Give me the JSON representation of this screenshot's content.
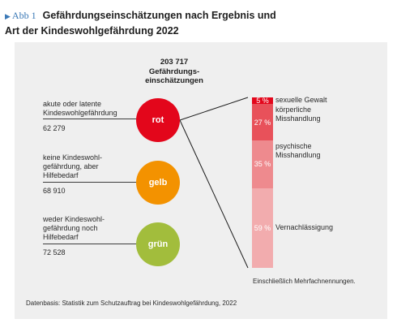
{
  "header": {
    "tag": "Abb 1",
    "title_line1": "Gefährdungseinschätzungen nach Ergebnis und",
    "title_line2": "Art der Kindeswohlgefährdung 2022"
  },
  "total": {
    "value": "203 717",
    "label_line1": "Gefährdungs-",
    "label_line2": "einschätzungen"
  },
  "groups": [
    {
      "label_lines": [
        "akute oder latente",
        "Kindeswohlgefährdung"
      ],
      "count": "62 279",
      "circle_label": "rot",
      "color": "#e3061b"
    },
    {
      "label_lines": [
        "keine Kindeswohl-",
        "gefährdung, aber",
        "Hilfebedarf"
      ],
      "count": "68 910",
      "circle_label": "gelb",
      "color": "#f39200"
    },
    {
      "label_lines": [
        "weder Kindeswohl-",
        "gefährdung noch",
        "Hilfebedarf"
      ],
      "count": "72 528",
      "circle_label": "grün",
      "color": "#a2bd3c"
    }
  ],
  "chart_data": {
    "type": "stacked_bar",
    "categories": [
      "sexuelle Gewalt",
      "körperliche Misshandlung",
      "psychische Misshandlung",
      "Vernachlässigung"
    ],
    "values": [
      5,
      27,
      35,
      59
    ],
    "value_labels": [
      "5 %",
      "27 %",
      "35 %",
      "59 %"
    ],
    "category_label_lines": [
      [
        "sexuelle Gewalt"
      ],
      [
        "körperliche",
        "Misshandlung"
      ],
      [
        "psychische",
        "Misshandlung"
      ],
      [
        "Vernachlässigung"
      ]
    ],
    "colors": [
      "#e3061b",
      "#e8515a",
      "#ee8a8e",
      "#f2acae"
    ]
  },
  "note": "Einschließlich Mehrfachnennungen.",
  "source": "Datenbasis: Statistik zum Schutzauftrag bei Kindeswohlgefährdung, 2022"
}
